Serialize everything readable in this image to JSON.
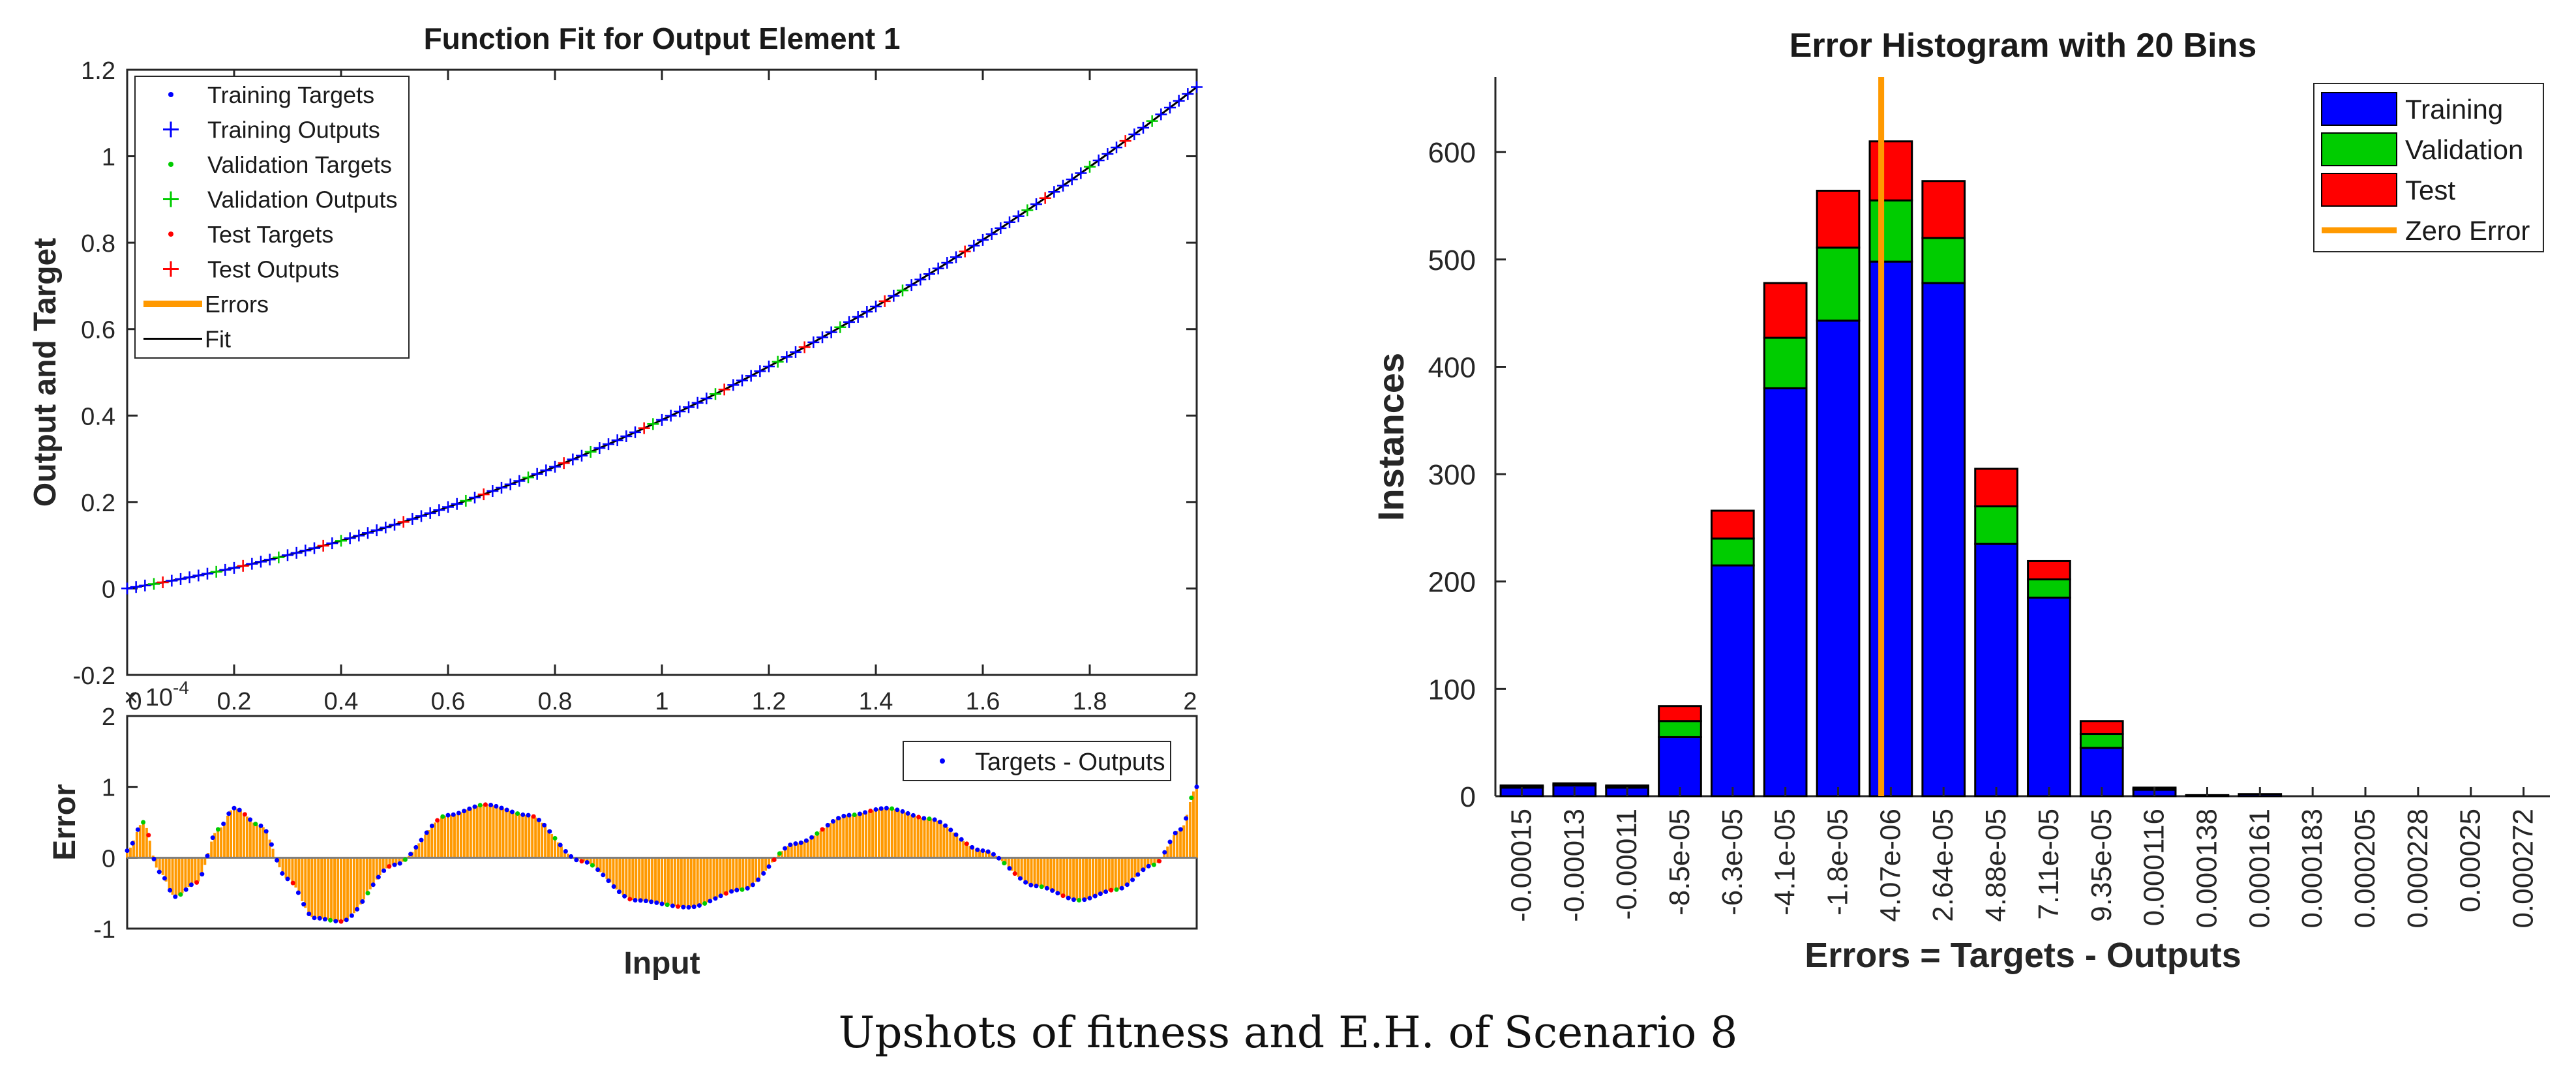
{
  "figure": {
    "caption": "Upshots of fitness and E.H. of Scenario 8"
  },
  "colors": {
    "training": "#0000ff",
    "validation": "#00cc00",
    "test": "#ff0000",
    "errors": "#ff9900",
    "fit": "#000000"
  },
  "chart_data": [
    {
      "type": "line",
      "id": "fit",
      "title": "Function Fit for Output Element 1",
      "xlabel": "",
      "ylabel": "Output and Target",
      "xlim": [
        0,
        2
      ],
      "ylim": [
        -0.2,
        1.2
      ],
      "xticks": [
        "0",
        "0.2",
        "0.4",
        "0.6",
        "0.8",
        "1",
        "1.2",
        "1.4",
        "1.6",
        "1.8",
        "2"
      ],
      "yticks": [
        "-0.2",
        "0",
        "0.2",
        "0.4",
        "0.6",
        "0.8",
        "1",
        "1.2"
      ],
      "curve": "y = 0.2*x + 0.19*x^2",
      "x": [
        0,
        0.2,
        0.4,
        0.6,
        0.8,
        1.0,
        1.2,
        1.4,
        1.6,
        1.8,
        2.0
      ],
      "y": [
        0,
        0.048,
        0.11,
        0.188,
        0.282,
        0.39,
        0.514,
        0.652,
        0.806,
        0.976,
        1.16
      ],
      "legend": [
        "Training Targets",
        "Training Outputs",
        "Validation Targets",
        "Validation Outputs",
        "Test Targets",
        "Test Outputs",
        "Errors",
        "Fit"
      ],
      "legend_position": "top-left"
    },
    {
      "type": "area",
      "id": "error",
      "xlabel": "Input",
      "ylabel": "Error",
      "exponent_label": "× 10",
      "exponent_power": "-4",
      "xlim": [
        0,
        2
      ],
      "ylim": [
        -1,
        2
      ],
      "yticks": [
        "-1",
        "0",
        "1",
        "2"
      ],
      "x": [
        0,
        0.03,
        0.06,
        0.09,
        0.13,
        0.17,
        0.2,
        0.25,
        0.3,
        0.35,
        0.4,
        0.5,
        0.6,
        0.67,
        0.75,
        0.85,
        0.95,
        1.05,
        1.15,
        1.25,
        1.35,
        1.42,
        1.5,
        1.6,
        1.7,
        1.78,
        1.85,
        1.92,
        1.97,
        2.0
      ],
      "y": [
        0.1,
        0.5,
        -0.2,
        -0.55,
        -0.35,
        0.4,
        0.7,
        0.45,
        -0.3,
        -0.85,
        -0.9,
        -0.1,
        0.6,
        0.75,
        0.6,
        -0.05,
        -0.6,
        -0.7,
        -0.45,
        0.2,
        0.6,
        0.7,
        0.55,
        0.1,
        -0.4,
        -0.6,
        -0.45,
        -0.1,
        0.4,
        1.0
      ],
      "legend": [
        "Targets - Outputs"
      ],
      "legend_position": "top-right"
    },
    {
      "type": "bar",
      "id": "histogram",
      "title": "Error Histogram with 20 Bins",
      "xlabel": "Errors = Targets - Outputs",
      "ylabel": "Instances",
      "ylim": [
        0,
        670
      ],
      "yticks": [
        "0",
        "100",
        "200",
        "300",
        "400",
        "500",
        "600"
      ],
      "categories": [
        "-0.00015",
        "-0.00013",
        "-0.00011",
        "-8.5e-05",
        "-6.3e-05",
        "-4.1e-05",
        "-1.8e-05",
        "4.07e-06",
        "2.64e-05",
        "4.88e-05",
        "7.11e-05",
        "9.35e-05",
        "0.000116",
        "0.000138",
        "0.000161",
        "0.000183",
        "0.000205",
        "0.000228",
        "0.00025",
        "0.000272"
      ],
      "series": [
        {
          "name": "Training",
          "values": [
            8,
            10,
            8,
            55,
            215,
            380,
            443,
            498,
            478,
            235,
            185,
            45,
            6,
            1,
            2,
            0,
            0,
            0,
            0,
            0
          ]
        },
        {
          "name": "Validation",
          "values": [
            1,
            1,
            1,
            15,
            25,
            47,
            68,
            57,
            42,
            35,
            17,
            13,
            1,
            0,
            0,
            0,
            0,
            0,
            0,
            0
          ]
        },
        {
          "name": "Test",
          "values": [
            1,
            1,
            1,
            14,
            26,
            51,
            53,
            55,
            53,
            35,
            17,
            12,
            1,
            0,
            0,
            0,
            0,
            0,
            0,
            0
          ]
        }
      ],
      "zero_error_at": 0,
      "legend": [
        "Training",
        "Validation",
        "Test",
        "Zero Error"
      ],
      "legend_position": "top-right"
    }
  ]
}
